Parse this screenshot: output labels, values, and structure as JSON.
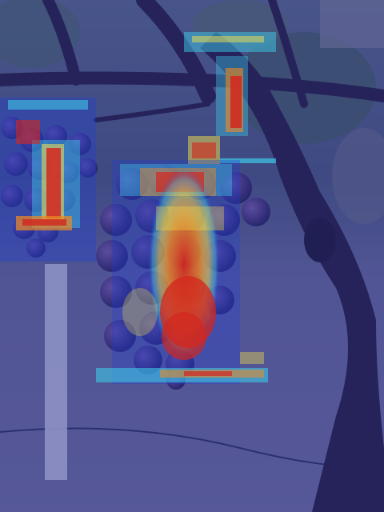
{
  "image": {
    "subject": "grape-vine-photo-with-attention-heatmap-overlay",
    "colors": {
      "sky": "#b8c2d8",
      "foliage": "#4f6b6a",
      "ground": "#6b6f98",
      "overlay_tint": "#2a2f8f",
      "trunk": "#241c3a",
      "grape_dark": "#2b2360",
      "grape_light": "#7b5ea8",
      "heat_red": "#d3261e",
      "heat_orange": "#f08a20",
      "heat_yellow": "#f6e04a",
      "heat_cyan": "#3ec8e6",
      "heat_blue": "#1f3fd6",
      "post": "#c9cde6"
    }
  }
}
